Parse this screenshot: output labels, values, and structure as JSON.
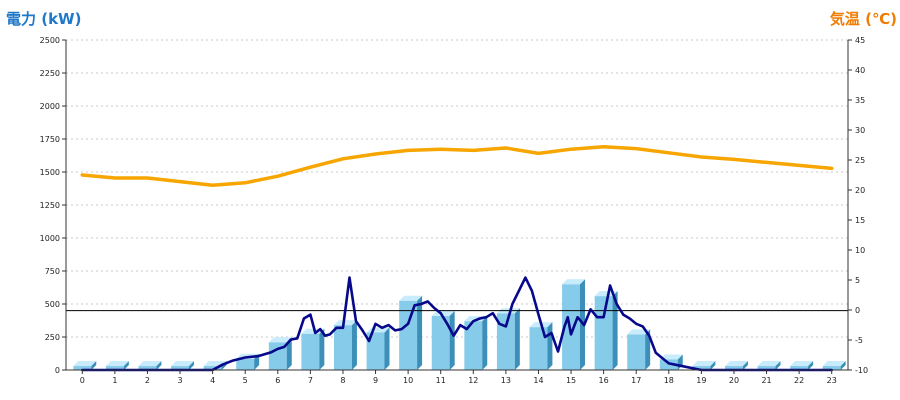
{
  "chart_data": {
    "type": "bar+line",
    "left_axis": {
      "label": "電力 (kW)",
      "range": [
        0,
        2500
      ],
      "ticks": [
        0,
        250,
        500,
        750,
        1000,
        1250,
        1500,
        1750,
        2000,
        2250,
        2500
      ]
    },
    "right_axis": {
      "label": "気温 (℃)",
      "range": [
        -10,
        45
      ],
      "ticks": [
        -10,
        -5,
        0,
        5,
        10,
        15,
        20,
        25,
        30,
        35,
        40,
        45
      ]
    },
    "categories": [
      "0",
      "1",
      "2",
      "3",
      "4",
      "5",
      "6",
      "7",
      "8",
      "9",
      "10",
      "11",
      "12",
      "13",
      "14",
      "15",
      "16",
      "17",
      "18",
      "19",
      "20",
      "21",
      "22",
      "23"
    ],
    "grid": true,
    "reference_line": 450,
    "series": [
      {
        "type": "bar",
        "axis": "left",
        "values": [
          30,
          30,
          30,
          30,
          30,
          85,
          210,
          275,
          340,
          285,
          525,
          410,
          370,
          430,
          325,
          650,
          560,
          270,
          80,
          30,
          30,
          30,
          30,
          30
        ]
      },
      {
        "type": "line",
        "axis": "left",
        "x": [
          0,
          1,
          2,
          3,
          4,
          4.3,
          4.6,
          5.0,
          5.4,
          5.8,
          6.0,
          6.2,
          6.4,
          6.6,
          6.8,
          7.0,
          7.15,
          7.3,
          7.45,
          7.6,
          7.8,
          8.0,
          8.2,
          8.4,
          8.6,
          8.8,
          9.0,
          9.2,
          9.4,
          9.6,
          9.8,
          10.0,
          10.2,
          10.4,
          10.6,
          10.8,
          11.0,
          11.2,
          11.4,
          11.6,
          11.8,
          12.0,
          12.2,
          12.4,
          12.6,
          12.8,
          13.0,
          13.2,
          13.4,
          13.6,
          13.8,
          14.0,
          14.2,
          14.4,
          14.6,
          14.8,
          14.9,
          15.0,
          15.2,
          15.4,
          15.6,
          15.8,
          16.0,
          16.2,
          16.4,
          16.6,
          16.8,
          17.0,
          17.2,
          17.4,
          17.6,
          17.8,
          18.0,
          18.2,
          19,
          20,
          21,
          22,
          23
        ],
        "values": [
          0,
          0,
          0,
          0,
          0,
          40,
          70,
          95,
          105,
          135,
          160,
          175,
          230,
          240,
          390,
          420,
          280,
          310,
          260,
          270,
          320,
          320,
          700,
          370,
          300,
          220,
          350,
          320,
          340,
          300,
          310,
          350,
          490,
          500,
          520,
          470,
          430,
          350,
          260,
          340,
          310,
          370,
          390,
          400,
          430,
          350,
          330,
          500,
          600,
          700,
          600,
          420,
          250,
          280,
          140,
          330,
          400,
          270,
          400,
          340,
          460,
          400,
          400,
          640,
          500,
          420,
          390,
          350,
          330,
          260,
          130,
          90,
          50,
          40,
          0,
          0,
          0,
          0,
          0
        ]
      },
      {
        "type": "line",
        "axis": "right",
        "x": [
          0,
          1,
          2,
          3,
          4,
          5,
          6,
          7,
          8,
          9,
          10,
          11,
          12,
          13,
          14,
          15,
          16,
          17,
          18,
          19,
          20,
          21,
          22,
          23
        ],
        "values": [
          22.5,
          22.0,
          22.0,
          21.4,
          20.8,
          21.2,
          22.3,
          23.8,
          25.2,
          26.0,
          26.6,
          26.8,
          26.6,
          27.0,
          26.1,
          26.8,
          27.2,
          26.9,
          26.2,
          25.5,
          25.1,
          24.6,
          24.1,
          23.6
        ]
      }
    ],
    "colors": {
      "bar": "#87cbea",
      "bar_side": "#3b8fb8",
      "bar_top": "#c8ecfb",
      "power_line": "#08088a",
      "temp_line": "#f7a500",
      "left_title": "#1f78c8",
      "right_title": "#f07c00"
    }
  }
}
